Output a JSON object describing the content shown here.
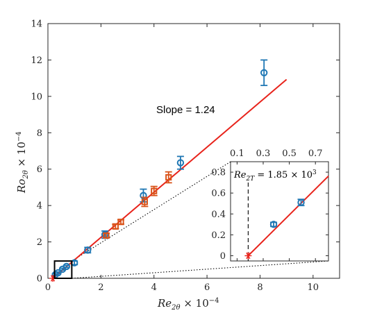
{
  "colors": {
    "fit_line": "#e8231b",
    "series_blue": "#1f77b4",
    "series_orange": "#d95319",
    "zoom_box": "#000000",
    "guide_lines": "#000000"
  },
  "chart_data": [
    {
      "type": "scatter",
      "title": "",
      "xlabel": "Re_{2θ} × 10^{-4}",
      "ylabel": "Ro_{2θ} × 10^{-4}",
      "xlabel_main": "Re",
      "xlabel_sub": "2θ",
      "xlabel_rest": " × 10",
      "xlabel_exp": "−4",
      "ylabel_main": "Ro",
      "ylabel_sub": "2θ",
      "ylabel_rest": " × 10",
      "ylabel_exp": "−4",
      "xlim": [
        0,
        11
      ],
      "ylim": [
        0,
        14
      ],
      "x_ticks": [
        "0",
        "2",
        "4",
        "6",
        "8",
        "10"
      ],
      "x_tick_values": [
        0,
        2,
        4,
        6,
        8,
        10
      ],
      "y_ticks": [
        "0",
        "2",
        "4",
        "6",
        "8",
        "10",
        "12",
        "14"
      ],
      "y_tick_values": [
        0,
        2,
        4,
        6,
        8,
        10,
        12,
        14
      ],
      "grid": false,
      "annotation": "Slope = 1.24",
      "fit_line": {
        "slope": 1.24,
        "x_intercept": 0.185,
        "x_end": 9.0
      },
      "series": [
        {
          "color": "#1f77b4",
          "marker": "circle",
          "x": [
            0.28,
            0.38,
            0.55,
            0.7,
            1.0,
            1.5,
            2.15,
            3.6,
            5.0,
            8.15
          ],
          "y": [
            0.2,
            0.3,
            0.5,
            0.65,
            0.85,
            1.55,
            2.4,
            4.55,
            6.35,
            11.3
          ],
          "err": [
            0.05,
            0.05,
            0.05,
            0.06,
            0.1,
            0.15,
            0.2,
            0.35,
            0.35,
            0.7
          ]
        },
        {
          "color": "#d95319",
          "marker": "square",
          "x": [
            2.2,
            2.55,
            2.75,
            3.65,
            4.0,
            4.55
          ],
          "y": [
            2.35,
            2.85,
            3.1,
            4.2,
            4.8,
            5.55
          ],
          "err": [
            0.12,
            0.12,
            0.12,
            0.25,
            0.25,
            0.3
          ]
        }
      ],
      "zoom_box": {
        "x": [
          0.25,
          0.9
        ],
        "y": [
          0,
          0.95
        ]
      }
    },
    {
      "type": "scatter",
      "title": "",
      "xlim": [
        0.05,
        0.8
      ],
      "ylim": [
        -0.05,
        0.9
      ],
      "x_ticks": [
        "0.1",
        "0.3",
        "0.5",
        "0.7"
      ],
      "x_tick_values": [
        0.1,
        0.3,
        0.5,
        0.7
      ],
      "y_ticks": [
        "0",
        "0.2",
        "0.4",
        "0.6",
        "0.8"
      ],
      "y_tick_values": [
        0,
        0.2,
        0.4,
        0.6,
        0.8
      ],
      "annotation_main": "Re",
      "annotation_sub": "2T",
      "annotation_rest": " = 1.85 × 10",
      "annotation_exp": "3",
      "critical_x": 0.185,
      "fit_line": {
        "slope": 1.24,
        "x_intercept": 0.185
      },
      "series": [
        {
          "color": "#1f77b4",
          "marker": "circle",
          "x": [
            0.38,
            0.59
          ],
          "y": [
            0.3,
            0.51
          ],
          "err": [
            0.02,
            0.03
          ]
        }
      ]
    }
  ]
}
